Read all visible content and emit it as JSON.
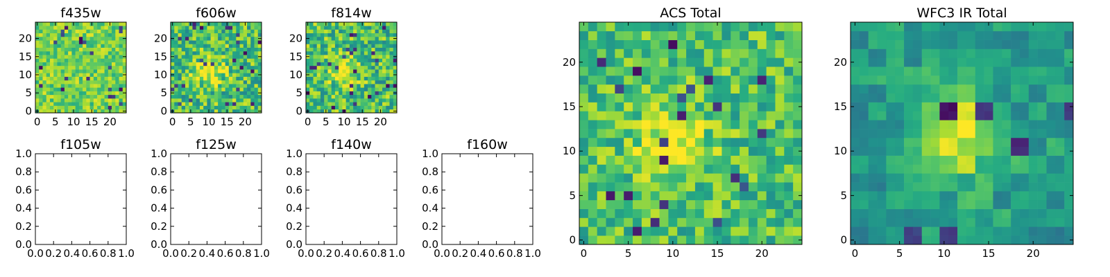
{
  "chart_data": [
    {
      "type": "heatmap",
      "id": "f435w",
      "title": "f435w",
      "kind": "image",
      "grid": [
        25,
        25
      ],
      "pixel_step": 1,
      "xticks": [
        0,
        5,
        10,
        15,
        20
      ],
      "yticks": [
        0,
        5,
        10,
        15,
        20
      ],
      "xlim": [
        -0.5,
        24.5
      ],
      "ylim": [
        -0.5,
        24.5
      ],
      "colormap": "viridis",
      "seed": 11,
      "pattern": "noise_bright",
      "block": 1
    },
    {
      "type": "heatmap",
      "id": "f606w",
      "title": "f606w",
      "kind": "image",
      "grid": [
        25,
        25
      ],
      "pixel_step": 1,
      "xticks": [
        0,
        5,
        10,
        15,
        20
      ],
      "yticks": [
        0,
        5,
        10,
        15,
        20
      ],
      "xlim": [
        -0.5,
        24.5
      ],
      "ylim": [
        -0.5,
        24.5
      ],
      "colormap": "viridis",
      "seed": 23,
      "pattern": "noise",
      "block": 1
    },
    {
      "type": "heatmap",
      "id": "f814w",
      "title": "f814w",
      "kind": "image",
      "grid": [
        25,
        25
      ],
      "pixel_step": 1,
      "xticks": [
        0,
        5,
        10,
        15,
        20
      ],
      "yticks": [
        0,
        5,
        10,
        15,
        20
      ],
      "xlim": [
        -0.5,
        24.5
      ],
      "ylim": [
        -0.5,
        24.5
      ],
      "colormap": "viridis",
      "seed": 37,
      "pattern": "noise",
      "block": 1
    },
    {
      "type": "line",
      "id": "f105w",
      "title": "f105w",
      "kind": "empty",
      "xticks": [
        "0.0",
        "0.2",
        "0.4",
        "0.6",
        "0.8",
        "1.0"
      ],
      "yticks": [
        "0.0",
        "0.2",
        "0.4",
        "0.6",
        "0.8",
        "1.0"
      ],
      "xlim": [
        0,
        1
      ],
      "ylim": [
        0,
        1
      ]
    },
    {
      "type": "line",
      "id": "f125w",
      "title": "f125w",
      "kind": "empty",
      "xticks": [
        "0.0",
        "0.2",
        "0.4",
        "0.6",
        "0.8",
        "1.0"
      ],
      "yticks": [
        "0.0",
        "0.2",
        "0.4",
        "0.6",
        "0.8",
        "1.0"
      ],
      "xlim": [
        0,
        1
      ],
      "ylim": [
        0,
        1
      ]
    },
    {
      "type": "line",
      "id": "f140w",
      "title": "f140w",
      "kind": "empty",
      "xticks": [
        "0.0",
        "0.2",
        "0.4",
        "0.6",
        "0.8",
        "1.0"
      ],
      "yticks": [
        "0.0",
        "0.2",
        "0.4",
        "0.6",
        "0.8",
        "1.0"
      ],
      "xlim": [
        0,
        1
      ],
      "ylim": [
        0,
        1
      ]
    },
    {
      "type": "line",
      "id": "f160w",
      "title": "f160w",
      "kind": "empty",
      "xticks": [
        "0.0",
        "0.2",
        "0.4",
        "0.6",
        "0.8",
        "1.0"
      ],
      "yticks": [
        "0.0",
        "0.2",
        "0.4",
        "0.6",
        "0.8",
        "1.0"
      ],
      "xlim": [
        0,
        1
      ],
      "ylim": [
        0,
        1
      ]
    },
    {
      "type": "heatmap",
      "id": "acs-total",
      "title": "ACS Total",
      "kind": "image",
      "grid": [
        25,
        25
      ],
      "pixel_step": 1,
      "xticks": [
        0,
        5,
        10,
        15,
        20
      ],
      "yticks": [
        0,
        5,
        10,
        15,
        20
      ],
      "xlim": [
        -0.5,
        24.5
      ],
      "ylim": [
        -0.5,
        24.5
      ],
      "colormap": "viridis",
      "seed": 53,
      "pattern": "noise_blob",
      "block": 1
    },
    {
      "type": "heatmap",
      "id": "wfc3-ir-total",
      "title": "WFC3 IR Total",
      "kind": "image",
      "grid": [
        25,
        25
      ],
      "pixel_step": 1,
      "xticks": [
        0,
        5,
        10,
        15,
        20
      ],
      "yticks": [
        0,
        5,
        10,
        15,
        20
      ],
      "xlim": [
        -0.5,
        24.5
      ],
      "ylim": [
        -0.5,
        24.5
      ],
      "colormap": "viridis",
      "seed": 71,
      "pattern": "smooth_blob",
      "block": 2
    }
  ]
}
